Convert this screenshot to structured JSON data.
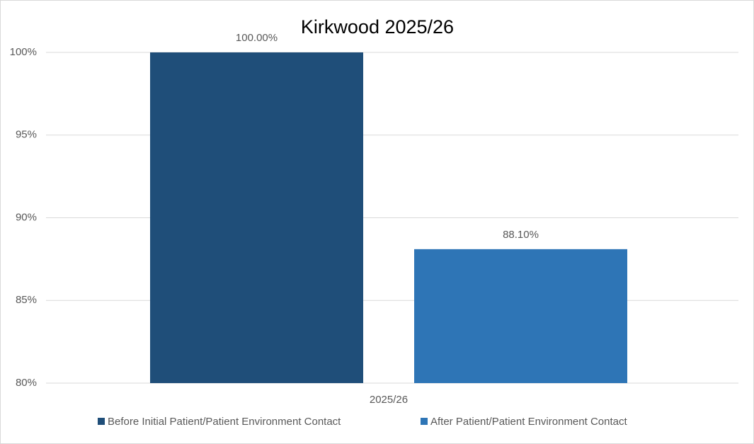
{
  "chart_data": {
    "type": "bar",
    "title": "Kirkwood 2025/26",
    "categories": [
      "2025/26"
    ],
    "series": [
      {
        "name": "Before Initial Patient/Patient Environment Contact",
        "color": "#1f4e79",
        "values": [
          100.0
        ],
        "value_labels": [
          "100.00%"
        ]
      },
      {
        "name": "After Patient/Patient Environment Contact",
        "color": "#2e75b6",
        "values": [
          88.1
        ],
        "value_labels": [
          "88.10%"
        ]
      }
    ],
    "ylim": [
      80,
      100
    ],
    "yticks": [
      {
        "value": 80,
        "label": "80%"
      },
      {
        "value": 85,
        "label": "85%"
      },
      {
        "value": 90,
        "label": "90%"
      },
      {
        "value": 95,
        "label": "95%"
      },
      {
        "value": 100,
        "label": "100%"
      }
    ],
    "grid": true,
    "legend": "bottom"
  }
}
